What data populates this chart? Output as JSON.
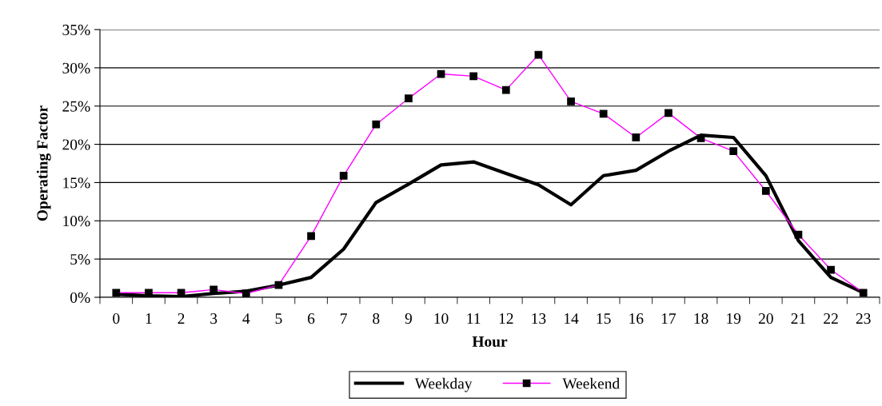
{
  "chart_data": {
    "type": "line",
    "xlabel": "Hour",
    "ylabel": "Operating Factor",
    "categories": [
      "0",
      "1",
      "2",
      "3",
      "4",
      "5",
      "6",
      "7",
      "8",
      "9",
      "10",
      "11",
      "12",
      "13",
      "14",
      "15",
      "16",
      "17",
      "18",
      "19",
      "20",
      "21",
      "22",
      "23"
    ],
    "series": [
      {
        "name": "Weekday",
        "color": "#000000",
        "marker": "none",
        "values": [
          0.4,
          0.2,
          0.1,
          0.5,
          0.8,
          1.6,
          2.6,
          6.3,
          12.4,
          14.8,
          17.3,
          17.7,
          16.2,
          14.7,
          12.1,
          15.9,
          16.6,
          19.1,
          21.2,
          20.9,
          15.9,
          7.4,
          2.6,
          0.6
        ]
      },
      {
        "name": "Weekend",
        "color": "#ff00ff",
        "marker": "square",
        "values": [
          0.6,
          0.6,
          0.6,
          1.0,
          0.5,
          1.6,
          8.0,
          15.9,
          22.6,
          26.0,
          29.2,
          28.9,
          27.1,
          31.7,
          25.6,
          24.0,
          20.9,
          24.1,
          20.8,
          19.1,
          13.9,
          8.2,
          3.6,
          0.6
        ]
      }
    ],
    "ylim": [
      0,
      35
    ],
    "yticks": [
      {
        "value": 0,
        "label": "0%"
      },
      {
        "value": 5,
        "label": "5%"
      },
      {
        "value": 10,
        "label": "10%"
      },
      {
        "value": 15,
        "label": "15%"
      },
      {
        "value": 20,
        "label": "20%"
      },
      {
        "value": 25,
        "label": "25%"
      },
      {
        "value": 30,
        "label": "30%"
      },
      {
        "value": 35,
        "label": "35%"
      }
    ],
    "grid": "y",
    "legend": "bottom"
  }
}
